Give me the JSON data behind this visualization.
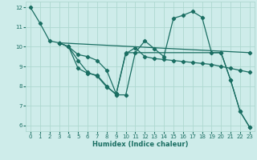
{
  "xlabel": "Humidex (Indice chaleur)",
  "bg_color": "#ceecea",
  "grid_color": "#aed8d0",
  "line_color": "#1a6e62",
  "xlim": [
    -0.5,
    23.5
  ],
  "ylim": [
    5.7,
    12.3
  ],
  "yticks": [
    6,
    7,
    8,
    9,
    10,
    11,
    12
  ],
  "xticks": [
    0,
    1,
    2,
    3,
    4,
    5,
    6,
    7,
    8,
    9,
    10,
    11,
    12,
    13,
    14,
    15,
    16,
    17,
    18,
    19,
    20,
    21,
    22,
    23
  ],
  "lines": [
    {
      "x": [
        0,
        1,
        2,
        3,
        4,
        5,
        6,
        7,
        8,
        9,
        10,
        11,
        12,
        13,
        14,
        15,
        16,
        17,
        18,
        19,
        20,
        21,
        22,
        23
      ],
      "y": [
        12.0,
        11.2,
        10.3,
        10.2,
        10.0,
        8.9,
        8.65,
        8.55,
        8.0,
        7.55,
        7.55,
        9.7,
        10.3,
        9.9,
        9.5,
        11.45,
        11.6,
        11.8,
        11.5,
        9.7,
        9.7,
        8.3,
        6.7,
        5.9
      ]
    },
    {
      "x": [
        3,
        4,
        5,
        6,
        7,
        8,
        9,
        10,
        11,
        12,
        13,
        14,
        15,
        16,
        17,
        18,
        19,
        20,
        21,
        22,
        23
      ],
      "y": [
        10.2,
        10.0,
        9.3,
        8.7,
        8.5,
        7.95,
        7.6,
        9.65,
        9.95,
        9.5,
        9.4,
        9.35,
        9.3,
        9.25,
        9.2,
        9.15,
        9.1,
        9.0,
        8.9,
        8.8,
        8.7
      ]
    },
    {
      "x": [
        3,
        4,
        5,
        6,
        7,
        8,
        9,
        10,
        20,
        21,
        22,
        23
      ],
      "y": [
        10.2,
        10.0,
        9.6,
        9.5,
        9.3,
        8.8,
        7.6,
        9.7,
        9.7,
        8.3,
        6.7,
        5.9
      ]
    },
    {
      "x": [
        3,
        23
      ],
      "y": [
        10.2,
        9.7
      ]
    }
  ]
}
